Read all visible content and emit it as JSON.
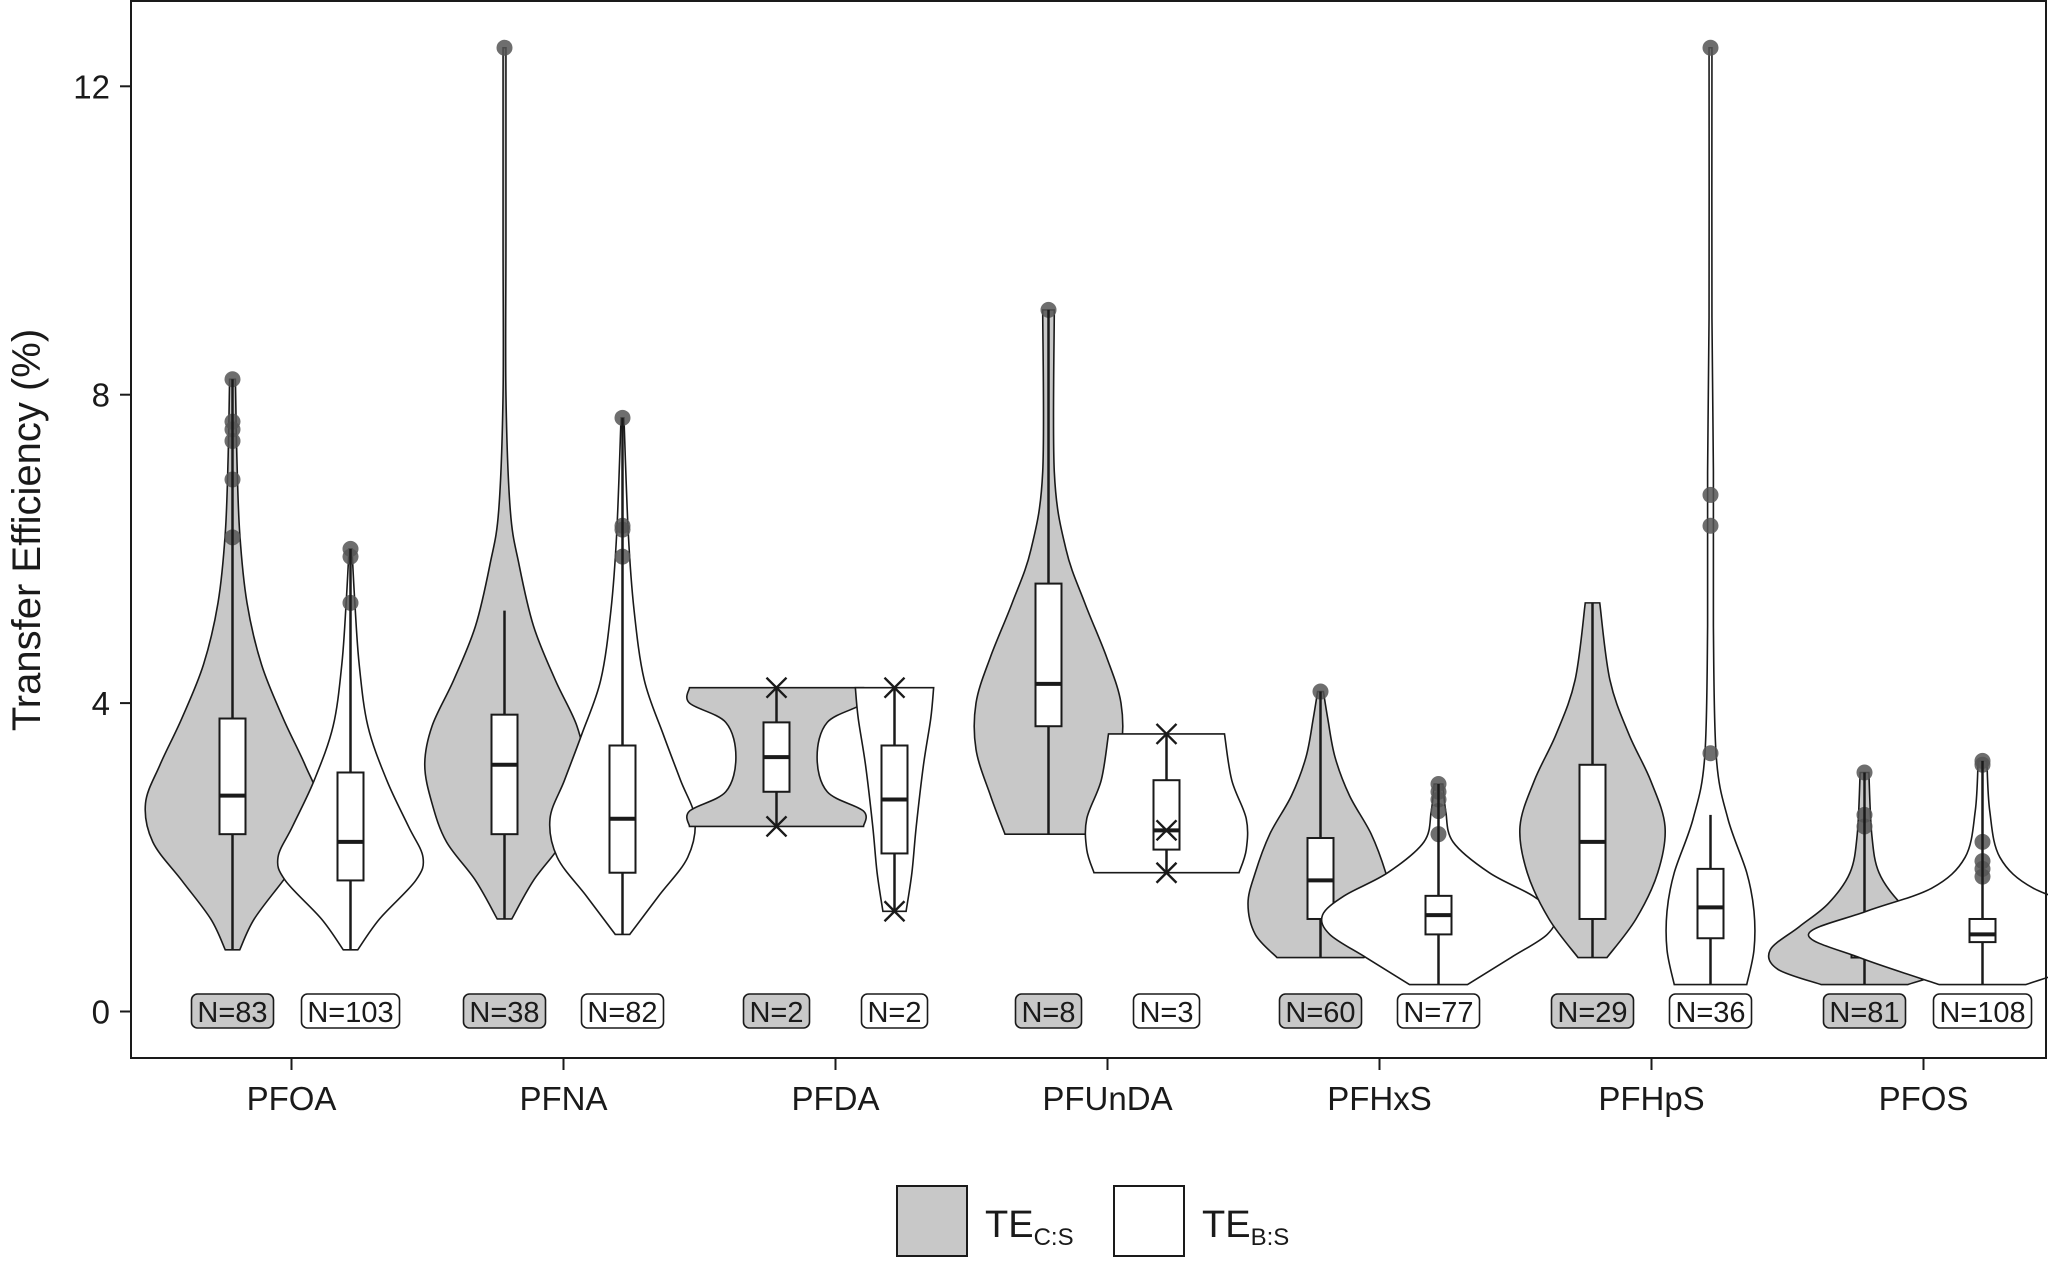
{
  "chart_data": {
    "type": "violin",
    "title": "",
    "xlabel": "",
    "ylabel": "Transfer Efficiency (%)",
    "ylim": [
      -0.6,
      13.0
    ],
    "yticks": [
      0,
      4,
      8,
      12
    ],
    "categories": [
      "PFOA",
      "PFNA",
      "PFDA",
      "PFUnDA",
      "PFHxS",
      "PFHpS",
      "PFOS"
    ],
    "legend": {
      "position": "bottom",
      "items": [
        {
          "label": "TE",
          "subscript": "C:S",
          "color": "#c8c8c8"
        },
        {
          "label": "TE",
          "subscript": "B:S",
          "color": "#ffffff"
        }
      ]
    },
    "series": [
      {
        "key": "TE_C:S",
        "fill": "#c8c8c8",
        "groups": [
          {
            "n_label": "N=83",
            "ymin": 0.8,
            "ymax": 8.2,
            "q1": 2.3,
            "median": 2.8,
            "q3": 3.8,
            "wlo": 0.8,
            "whi": 8.2,
            "profile": [
              [
                0.8,
                0.005
              ],
              [
                1.2,
                0.015
              ],
              [
                1.7,
                0.035
              ],
              [
                2.2,
                0.055
              ],
              [
                2.7,
                0.06
              ],
              [
                3.2,
                0.05
              ],
              [
                3.8,
                0.035
              ],
              [
                4.5,
                0.02
              ],
              [
                5.3,
                0.01
              ],
              [
                6.2,
                0.005
              ],
              [
                7.2,
                0.003
              ],
              [
                8.2,
                0.002
              ]
            ],
            "outliers": [
              8.2,
              7.65,
              7.55,
              7.4,
              6.9,
              6.15
            ]
          },
          {
            "n_label": "N=38",
            "ymin": 1.2,
            "ymax": 12.5,
            "q1": 2.3,
            "median": 3.2,
            "q3": 3.85,
            "wlo": 1.2,
            "whi": 5.2,
            "profile": [
              [
                1.2,
                0.005
              ],
              [
                1.7,
                0.02
              ],
              [
                2.2,
                0.04
              ],
              [
                2.7,
                0.05
              ],
              [
                3.2,
                0.055
              ],
              [
                3.7,
                0.05
              ],
              [
                4.3,
                0.035
              ],
              [
                5.0,
                0.02
              ],
              [
                5.8,
                0.01
              ],
              [
                6.5,
                0.004
              ],
              [
                8.0,
                0.001
              ],
              [
                10.0,
                0.001
              ],
              [
                12.5,
                0.001
              ]
            ],
            "outliers": [
              12.5
            ]
          },
          {
            "n_label": "N=2",
            "ymin": 2.4,
            "ymax": 4.2,
            "q1": 2.85,
            "median": 3.3,
            "q3": 3.75,
            "wlo": 2.4,
            "whi": 4.2,
            "notch": true,
            "profile": [
              [
                2.4,
                0.06
              ],
              [
                2.6,
                0.06
              ],
              [
                2.85,
                0.035
              ],
              [
                3.3,
                0.028
              ],
              [
                3.75,
                0.035
              ],
              [
                4.0,
                0.06
              ],
              [
                4.2,
                0.06
              ]
            ],
            "point_markers": [
              2.4,
              4.2
            ]
          }
        ]
      },
      {
        "key": "TE_B:S",
        "fill": "#ffffff",
        "groups": [
          {
            "n_label": "N=103",
            "ymin": 0.8,
            "ymax": 6.0,
            "q1": 1.7,
            "median": 2.2,
            "q3": 3.1,
            "wlo": 0.8,
            "whi": 6.0,
            "profile": [
              [
                0.8,
                0.005
              ],
              [
                1.2,
                0.02
              ],
              [
                1.7,
                0.045
              ],
              [
                2.0,
                0.05
              ],
              [
                2.4,
                0.04
              ],
              [
                3.0,
                0.025
              ],
              [
                3.7,
                0.012
              ],
              [
                4.5,
                0.006
              ],
              [
                5.3,
                0.003
              ],
              [
                6.0,
                0.001
              ]
            ],
            "outliers": [
              6.0,
              5.9,
              5.3
            ]
          },
          {
            "n_label": "N=82",
            "ymin": 1.0,
            "ymax": 7.7,
            "q1": 1.8,
            "median": 2.5,
            "q3": 3.45,
            "wlo": 1.0,
            "whi": 7.7,
            "profile": [
              [
                1.0,
                0.005
              ],
              [
                1.5,
                0.025
              ],
              [
                2.0,
                0.045
              ],
              [
                2.5,
                0.05
              ],
              [
                3.0,
                0.04
              ],
              [
                3.6,
                0.028
              ],
              [
                4.3,
                0.015
              ],
              [
                5.2,
                0.008
              ],
              [
                6.2,
                0.004
              ],
              [
                7.7,
                0.001
              ]
            ],
            "outliers": [
              7.7,
              6.3,
              6.25,
              5.9
            ]
          },
          {
            "n_label": "N=2",
            "ymin": 1.3,
            "ymax": 4.2,
            "q1": 2.05,
            "median": 2.75,
            "q3": 3.45,
            "wlo": 1.3,
            "whi": 4.2,
            "profile": [
              [
                1.3,
                0.008
              ],
              [
                1.8,
                0.012
              ],
              [
                2.4,
                0.015
              ],
              [
                3.2,
                0.02
              ],
              [
                3.8,
                0.025
              ],
              [
                4.2,
                0.027
              ]
            ],
            "point_markers": [
              1.3,
              4.2
            ]
          }
        ]
      }
    ],
    "extra_groups": [
      {
        "category": "PFUnDA",
        "series_key": "TE_C:S",
        "n_label": "N=8",
        "ymin": 2.3,
        "ymax": 9.1,
        "q1": 3.7,
        "median": 4.25,
        "q3": 5.55,
        "wlo": 2.3,
        "whi": 9.1,
        "profile": [
          [
            2.3,
            0.03
          ],
          [
            2.8,
            0.04
          ],
          [
            3.4,
            0.05
          ],
          [
            4.0,
            0.05
          ],
          [
            4.6,
            0.04
          ],
          [
            5.3,
            0.025
          ],
          [
            6.0,
            0.012
          ],
          [
            7.0,
            0.004
          ],
          [
            9.1,
            0.004
          ]
        ],
        "outliers": [
          9.1
        ]
      },
      {
        "category": "PFUnDA",
        "series_key": "TE_B:S",
        "n_label": "N=3",
        "ymin": 1.8,
        "ymax": 3.6,
        "q1": 2.1,
        "median": 2.35,
        "q3": 3.0,
        "wlo": 1.8,
        "whi": 3.6,
        "profile": [
          [
            1.8,
            0.05
          ],
          [
            2.1,
            0.055
          ],
          [
            2.5,
            0.055
          ],
          [
            3.0,
            0.045
          ],
          [
            3.6,
            0.04
          ]
        ],
        "point_markers": [
          1.8,
          2.35,
          3.6
        ]
      },
      {
        "category": "PFHxS",
        "series_key": "TE_C:S",
        "n_label": "N=60",
        "ymin": 0.7,
        "ymax": 4.15,
        "q1": 1.2,
        "median": 1.7,
        "q3": 2.25,
        "wlo": 0.7,
        "whi": 4.15,
        "profile": [
          [
            0.7,
            0.03
          ],
          [
            1.0,
            0.045
          ],
          [
            1.4,
            0.05
          ],
          [
            1.8,
            0.045
          ],
          [
            2.3,
            0.035
          ],
          [
            2.8,
            0.02
          ],
          [
            3.3,
            0.01
          ],
          [
            3.8,
            0.005
          ],
          [
            4.15,
            0.002
          ]
        ],
        "outliers": [
          4.15
        ]
      },
      {
        "category": "PFHxS",
        "series_key": "TE_B:S",
        "n_label": "N=77",
        "ymin": 0.35,
        "ymax": 2.95,
        "q1": 1.0,
        "median": 1.25,
        "q3": 1.5,
        "wlo": 0.35,
        "whi": 2.95,
        "profile": [
          [
            0.35,
            0.02
          ],
          [
            0.7,
            0.05
          ],
          [
            1.0,
            0.075
          ],
          [
            1.25,
            0.08
          ],
          [
            1.5,
            0.065
          ],
          [
            1.8,
            0.035
          ],
          [
            2.2,
            0.01
          ],
          [
            2.6,
            0.005
          ],
          [
            2.95,
            0.003
          ]
        ],
        "outliers": [
          2.95,
          2.85,
          2.75,
          2.6,
          2.3
        ]
      },
      {
        "category": "PFHpS",
        "series_key": "TE_C:S",
        "n_label": "N=29",
        "ymin": 0.7,
        "ymax": 5.3,
        "q1": 1.2,
        "median": 2.2,
        "q3": 3.2,
        "wlo": 0.7,
        "whi": 5.3,
        "profile": [
          [
            0.7,
            0.01
          ],
          [
            1.2,
            0.03
          ],
          [
            1.8,
            0.045
          ],
          [
            2.4,
            0.05
          ],
          [
            3.0,
            0.04
          ],
          [
            3.6,
            0.025
          ],
          [
            4.3,
            0.012
          ],
          [
            5.3,
            0.005
          ]
        ]
      },
      {
        "category": "PFHpS",
        "series_key": "TE_B:S",
        "n_label": "N=36",
        "ymin": 0.35,
        "ymax": 12.5,
        "q1": 0.95,
        "median": 1.35,
        "q3": 1.85,
        "wlo": 0.35,
        "whi": 2.55,
        "profile": [
          [
            0.35,
            0.025
          ],
          [
            0.8,
            0.03
          ],
          [
            1.3,
            0.03
          ],
          [
            1.8,
            0.025
          ],
          [
            2.5,
            0.012
          ],
          [
            3.3,
            0.004
          ],
          [
            5.0,
            0.002
          ],
          [
            7.0,
            0.002
          ],
          [
            9.0,
            0.001
          ],
          [
            12.5,
            0.001
          ]
        ],
        "outliers": [
          12.5,
          6.7,
          6.3,
          3.35
        ]
      },
      {
        "category": "PFOS",
        "series_key": "TE_C:S",
        "n_label": "N=81",
        "ymin": 0.35,
        "ymax": 3.1,
        "q1": 0.7,
        "median": 0.85,
        "q3": 1.2,
        "wlo": 0.35,
        "whi": 3.1,
        "profile": [
          [
            0.35,
            0.03
          ],
          [
            0.55,
            0.06
          ],
          [
            0.8,
            0.065
          ],
          [
            1.1,
            0.045
          ],
          [
            1.4,
            0.025
          ],
          [
            1.8,
            0.01
          ],
          [
            2.3,
            0.005
          ],
          [
            3.1,
            0.003
          ]
        ],
        "outliers": [
          3.1,
          2.55,
          2.4
        ]
      },
      {
        "category": "PFOS",
        "series_key": "TE_B:S",
        "n_label": "N=108",
        "ymin": 0.35,
        "ymax": 3.25,
        "q1": 0.9,
        "median": 1.0,
        "q3": 1.2,
        "wlo": 0.35,
        "whi": 3.25,
        "profile": [
          [
            0.35,
            0.03
          ],
          [
            0.7,
            0.085
          ],
          [
            1.0,
            0.12
          ],
          [
            1.3,
            0.08
          ],
          [
            1.6,
            0.035
          ],
          [
            2.0,
            0.012
          ],
          [
            2.6,
            0.005
          ],
          [
            3.25,
            0.003
          ]
        ],
        "outliers": [
          3.25,
          3.2,
          2.2,
          1.95,
          1.85,
          1.75
        ]
      }
    ]
  }
}
